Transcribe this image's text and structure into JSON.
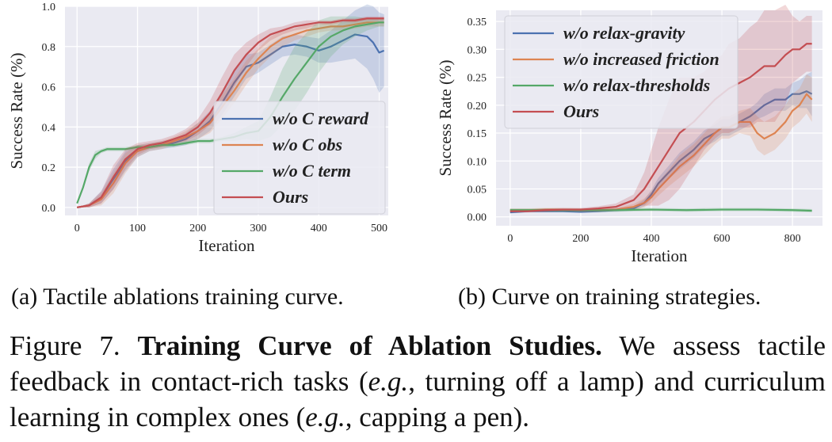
{
  "chart_data": [
    {
      "type": "line",
      "id": "a",
      "title": "",
      "xlabel": "Iteration",
      "ylabel": "Success Rate (%)",
      "xlim": [
        -20,
        515
      ],
      "ylim": [
        -0.04,
        1.0
      ],
      "xticks": [
        0,
        100,
        200,
        300,
        400,
        500
      ],
      "xtick_labels": [
        "0",
        "100",
        "200",
        "300",
        "400",
        "500"
      ],
      "yticks": [
        0.0,
        0.2,
        0.4,
        0.6,
        0.8,
        1.0
      ],
      "ytick_labels": [
        "0.0",
        "0.2",
        "0.4",
        "0.6",
        "0.8",
        "1.0"
      ],
      "grid": true,
      "legend_position": "lower-right",
      "series": [
        {
          "name": "w/o C reward",
          "color": "#4c72b0",
          "x": [
            0,
            20,
            40,
            60,
            80,
            100,
            120,
            140,
            160,
            180,
            200,
            220,
            240,
            260,
            280,
            300,
            320,
            340,
            360,
            380,
            400,
            420,
            440,
            460,
            480,
            490,
            500,
            508
          ],
          "y": [
            0.0,
            0.01,
            0.05,
            0.14,
            0.23,
            0.28,
            0.3,
            0.31,
            0.32,
            0.34,
            0.38,
            0.43,
            0.52,
            0.62,
            0.7,
            0.72,
            0.76,
            0.8,
            0.81,
            0.8,
            0.78,
            0.8,
            0.83,
            0.86,
            0.85,
            0.82,
            0.77,
            0.78
          ],
          "spread": [
            0.0,
            0.01,
            0.03,
            0.05,
            0.05,
            0.03,
            0.02,
            0.02,
            0.02,
            0.03,
            0.04,
            0.05,
            0.06,
            0.07,
            0.06,
            0.05,
            0.05,
            0.05,
            0.05,
            0.05,
            0.06,
            0.08,
            0.1,
            0.12,
            0.16,
            0.18,
            0.2,
            0.18
          ]
        },
        {
          "name": "w/o C obs",
          "color": "#dd8452",
          "x": [
            0,
            20,
            40,
            60,
            80,
            100,
            120,
            140,
            160,
            180,
            200,
            220,
            240,
            260,
            280,
            300,
            320,
            340,
            360,
            380,
            400,
            420,
            440,
            460,
            480,
            500,
            508
          ],
          "y": [
            0.0,
            0.01,
            0.04,
            0.12,
            0.22,
            0.28,
            0.3,
            0.31,
            0.33,
            0.35,
            0.38,
            0.42,
            0.5,
            0.58,
            0.67,
            0.74,
            0.8,
            0.84,
            0.86,
            0.88,
            0.89,
            0.9,
            0.9,
            0.91,
            0.92,
            0.92,
            0.92
          ],
          "spread": [
            0.0,
            0.01,
            0.03,
            0.05,
            0.05,
            0.03,
            0.02,
            0.02,
            0.02,
            0.03,
            0.04,
            0.05,
            0.06,
            0.06,
            0.06,
            0.05,
            0.05,
            0.04,
            0.03,
            0.03,
            0.02,
            0.02,
            0.02,
            0.02,
            0.02,
            0.02,
            0.02
          ]
        },
        {
          "name": "w/o C term",
          "color": "#55a868",
          "x": [
            0,
            10,
            20,
            30,
            40,
            50,
            60,
            80,
            100,
            120,
            140,
            160,
            180,
            200,
            220,
            240,
            260,
            280,
            300,
            320,
            340,
            360,
            380,
            400,
            420,
            440,
            460,
            480,
            500,
            508
          ],
          "y": [
            0.02,
            0.1,
            0.2,
            0.26,
            0.28,
            0.29,
            0.29,
            0.29,
            0.3,
            0.3,
            0.31,
            0.31,
            0.32,
            0.33,
            0.33,
            0.34,
            0.35,
            0.37,
            0.38,
            0.45,
            0.55,
            0.64,
            0.72,
            0.8,
            0.85,
            0.88,
            0.9,
            0.91,
            0.92,
            0.92
          ],
          "spread": [
            0.0,
            0.01,
            0.02,
            0.02,
            0.01,
            0.01,
            0.01,
            0.01,
            0.01,
            0.01,
            0.01,
            0.01,
            0.01,
            0.01,
            0.01,
            0.01,
            0.02,
            0.03,
            0.05,
            0.1,
            0.14,
            0.16,
            0.15,
            0.13,
            0.1,
            0.07,
            0.05,
            0.03,
            0.02,
            0.02
          ]
        },
        {
          "name": "Ours",
          "color": "#c44e52",
          "x": [
            0,
            20,
            40,
            60,
            80,
            100,
            120,
            140,
            160,
            180,
            200,
            220,
            240,
            260,
            280,
            300,
            320,
            340,
            360,
            380,
            400,
            420,
            440,
            460,
            480,
            500,
            508
          ],
          "y": [
            0.0,
            0.01,
            0.05,
            0.15,
            0.24,
            0.29,
            0.31,
            0.32,
            0.34,
            0.36,
            0.4,
            0.47,
            0.57,
            0.68,
            0.76,
            0.82,
            0.86,
            0.88,
            0.9,
            0.91,
            0.92,
            0.92,
            0.93,
            0.93,
            0.94,
            0.94,
            0.94
          ],
          "spread": [
            0.0,
            0.01,
            0.03,
            0.06,
            0.05,
            0.03,
            0.02,
            0.02,
            0.02,
            0.03,
            0.04,
            0.06,
            0.08,
            0.08,
            0.06,
            0.04,
            0.03,
            0.02,
            0.02,
            0.02,
            0.01,
            0.01,
            0.01,
            0.01,
            0.01,
            0.01,
            0.01
          ]
        }
      ]
    },
    {
      "type": "line",
      "id": "b",
      "title": "",
      "xlabel": "Iteration",
      "ylabel": "Success Rate (%)",
      "xlim": [
        -40,
        885
      ],
      "ylim": [
        -0.016,
        0.37
      ],
      "xticks": [
        0,
        200,
        400,
        600,
        800
      ],
      "xtick_labels": [
        "0",
        "200",
        "400",
        "600",
        "800"
      ],
      "yticks": [
        0.0,
        0.05,
        0.1,
        0.15,
        0.2,
        0.25,
        0.3,
        0.35
      ],
      "ytick_labels": [
        "0.00",
        "0.05",
        "0.10",
        "0.15",
        "0.20",
        "0.25",
        "0.30",
        "0.35"
      ],
      "grid": true,
      "legend_position": "top-left",
      "series": [
        {
          "name": "w/o relax-gravity",
          "color": "#4c72b0",
          "x": [
            0,
            50,
            100,
            150,
            200,
            250,
            300,
            350,
            380,
            400,
            420,
            450,
            480,
            500,
            520,
            550,
            580,
            600,
            620,
            650,
            680,
            700,
            720,
            750,
            780,
            800,
            820,
            840,
            855
          ],
          "y": [
            0.008,
            0.01,
            0.01,
            0.01,
            0.009,
            0.01,
            0.012,
            0.015,
            0.025,
            0.04,
            0.06,
            0.08,
            0.1,
            0.11,
            0.12,
            0.14,
            0.15,
            0.16,
            0.16,
            0.17,
            0.18,
            0.19,
            0.2,
            0.21,
            0.21,
            0.22,
            0.22,
            0.225,
            0.22
          ],
          "spread": [
            0.002,
            0.002,
            0.002,
            0.002,
            0.002,
            0.002,
            0.003,
            0.004,
            0.006,
            0.008,
            0.01,
            0.012,
            0.015,
            0.015,
            0.015,
            0.015,
            0.015,
            0.015,
            0.015,
            0.015,
            0.015,
            0.015,
            0.02,
            0.02,
            0.02,
            0.02,
            0.025,
            0.03,
            0.04
          ]
        },
        {
          "name": "w/o increased friction",
          "color": "#dd8452",
          "x": [
            0,
            50,
            100,
            150,
            200,
            250,
            300,
            350,
            380,
            400,
            420,
            450,
            480,
            500,
            520,
            550,
            580,
            600,
            620,
            650,
            680,
            700,
            720,
            750,
            780,
            800,
            820,
            840,
            855
          ],
          "y": [
            0.012,
            0.012,
            0.013,
            0.013,
            0.012,
            0.012,
            0.013,
            0.018,
            0.025,
            0.035,
            0.05,
            0.07,
            0.09,
            0.1,
            0.11,
            0.13,
            0.15,
            0.16,
            0.16,
            0.17,
            0.17,
            0.15,
            0.14,
            0.15,
            0.17,
            0.19,
            0.2,
            0.22,
            0.21
          ],
          "spread": [
            0.003,
            0.003,
            0.003,
            0.003,
            0.003,
            0.003,
            0.003,
            0.005,
            0.008,
            0.01,
            0.012,
            0.015,
            0.02,
            0.02,
            0.02,
            0.02,
            0.02,
            0.02,
            0.02,
            0.02,
            0.025,
            0.03,
            0.03,
            0.03,
            0.03,
            0.03,
            0.03,
            0.035,
            0.04
          ]
        },
        {
          "name": "w/o relax-thresholds",
          "color": "#55a868",
          "x": [
            0,
            100,
            200,
            300,
            400,
            500,
            600,
            700,
            800,
            855
          ],
          "y": [
            0.012,
            0.012,
            0.012,
            0.012,
            0.013,
            0.012,
            0.013,
            0.013,
            0.012,
            0.011
          ],
          "spread": [
            0.003,
            0.003,
            0.003,
            0.003,
            0.003,
            0.003,
            0.003,
            0.003,
            0.003,
            0.003
          ]
        },
        {
          "name": "Ours",
          "color": "#c44e52",
          "x": [
            0,
            50,
            100,
            150,
            200,
            250,
            300,
            350,
            380,
            400,
            420,
            450,
            480,
            500,
            520,
            550,
            580,
            600,
            620,
            650,
            680,
            700,
            720,
            750,
            780,
            800,
            820,
            840,
            855
          ],
          "y": [
            0.01,
            0.01,
            0.012,
            0.013,
            0.013,
            0.015,
            0.018,
            0.03,
            0.05,
            0.07,
            0.09,
            0.12,
            0.15,
            0.16,
            0.17,
            0.19,
            0.21,
            0.22,
            0.23,
            0.24,
            0.25,
            0.26,
            0.27,
            0.27,
            0.29,
            0.3,
            0.3,
            0.31,
            0.31
          ],
          "spread": [
            0.002,
            0.002,
            0.003,
            0.003,
            0.003,
            0.004,
            0.006,
            0.01,
            0.03,
            0.05,
            0.07,
            0.09,
            0.1,
            0.09,
            0.08,
            0.07,
            0.07,
            0.07,
            0.08,
            0.08,
            0.09,
            0.09,
            0.1,
            0.1,
            0.09,
            0.06,
            0.05,
            0.05,
            0.05
          ]
        }
      ]
    }
  ],
  "captions": {
    "a": "(a) Tactile ablations training curve.",
    "b": "(b) Curve on training strategies.",
    "figure_prefix": "Figure 7. ",
    "figure_bold": "Training Curve of Ablation Studies.",
    "figure_text_1": " We assess tactile feedback in contact-rich tasks (",
    "eg_1": "e.g.",
    "figure_text_2": ", turning off a lamp) and curriculum learning in complex ones (",
    "eg_2": "e.g.",
    "figure_text_3": ", capping a pen)."
  }
}
